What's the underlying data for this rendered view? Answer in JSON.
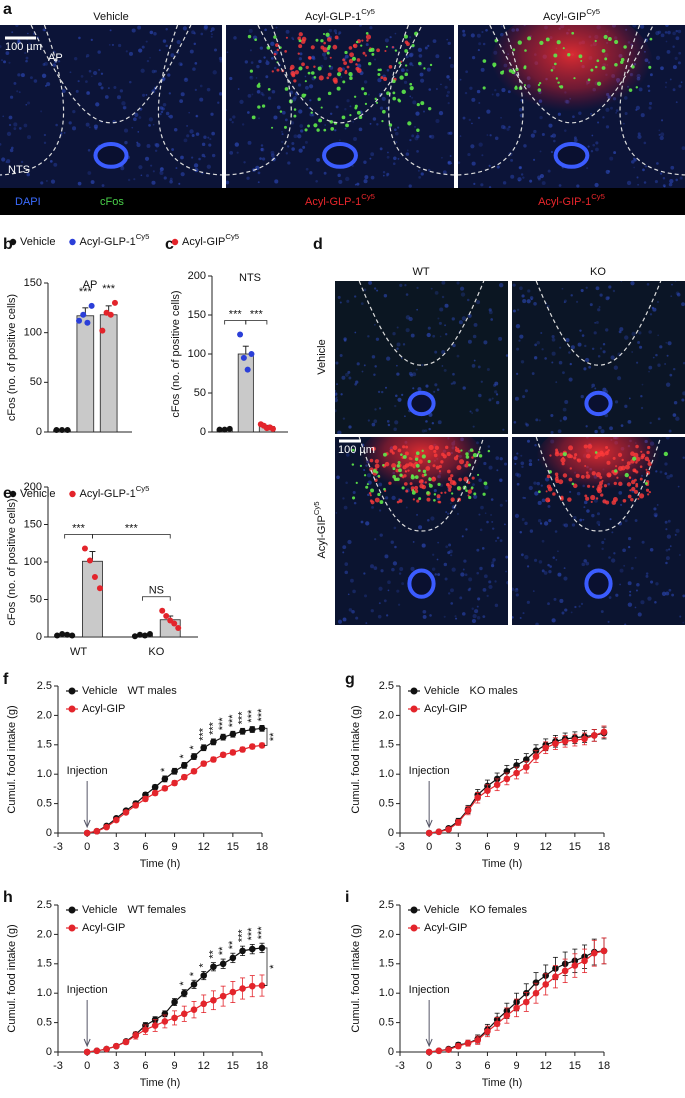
{
  "panel_a": {
    "letter": "a",
    "columns": [
      {
        "text": "Vehicle"
      },
      {
        "text": "Acyl-GLP-1",
        "sup": "Cy5"
      },
      {
        "text": "Acyl-GIP",
        "sup": "Cy5"
      }
    ],
    "scale_bar": "100 µm",
    "regions": [
      "AP",
      "NTS"
    ],
    "channels": [
      "DAPI",
      "cFos"
    ],
    "bottom_labels": [
      {
        "text": "Acyl-GLP-1",
        "sup": "Cy5"
      },
      {
        "text": "Acyl-GIP-1",
        "sup": "Cy5"
      }
    ]
  },
  "panel_d": {
    "letter": "d",
    "columns": [
      "WT",
      "KO"
    ],
    "rows": [
      {
        "text": "Vehicle"
      },
      {
        "text": "Acyl-GIP",
        "sup": "Cy5"
      }
    ],
    "scale_bar": "100 µm"
  },
  "chart_data": [
    {
      "type": "bar",
      "panel": "b",
      "title": "AP",
      "ylabel": "cFos (no. of positive cells)",
      "ylim": [
        0,
        150
      ],
      "yticks": [
        0,
        50,
        100,
        150
      ],
      "series": [
        {
          "name": "Vehicle",
          "color": "#111111",
          "values": [
            2
          ],
          "errors": [
            0.5
          ],
          "points": [
            [
              2,
              2,
              2
            ]
          ]
        },
        {
          "name": "Acyl-GLP-1",
          "name_sup": "Cy5",
          "color": "#2b3fd8",
          "values": [
            117
          ],
          "errors": [
            8
          ],
          "points": [
            [
              112,
              118,
              110,
              127
            ]
          ]
        },
        {
          "color": "#e3242b",
          "values": [
            118
          ],
          "errors": [
            9
          ],
          "points": [
            [
              102,
              120,
              118,
              130
            ]
          ]
        }
      ],
      "significance": [
        {
          "bars": [
            1
          ],
          "text": "***"
        },
        {
          "bars": [
            2
          ],
          "text": "***"
        }
      ]
    },
    {
      "type": "bar",
      "panel": "c",
      "title": "NTS",
      "ylabel": "cFos (no. of positive cells)",
      "ylim": [
        0,
        200
      ],
      "yticks": [
        0,
        50,
        100,
        150,
        200
      ],
      "series": [
        {
          "color": "#111111",
          "values": [
            3
          ],
          "errors": [
            0.5
          ],
          "points": [
            [
              3,
              3,
              4
            ]
          ]
        },
        {
          "color": "#2b3fd8",
          "values": [
            100
          ],
          "errors": [
            10
          ],
          "points": [
            [
              125,
              95,
              80,
              100
            ]
          ]
        },
        {
          "name": "Acyl-GIP",
          "name_sup": "Cy5",
          "color": "#e3242b",
          "values": [
            7
          ],
          "errors": [
            1.5
          ],
          "points": [
            [
              10,
              8,
              5,
              6,
              4
            ]
          ]
        }
      ],
      "significance": [
        {
          "bars": [
            0,
            1
          ],
          "text": "***"
        },
        {
          "bars": [
            1,
            2
          ],
          "text": "***"
        }
      ]
    },
    {
      "type": "bar",
      "panel": "e",
      "ylabel": "cFos (no. of positive cells)",
      "ylim": [
        0,
        200
      ],
      "yticks": [
        0,
        50,
        100,
        150,
        200
      ],
      "categories": [
        "WT",
        "KO"
      ],
      "series": [
        {
          "name": "Vehicle",
          "color": "#111111",
          "values": [
            3,
            2
          ],
          "errors": [
            0.5,
            0.6
          ],
          "points": [
            [
              2,
              4,
              3,
              2
            ],
            [
              1,
              3,
              2,
              4
            ]
          ]
        },
        {
          "name": "Acyl-GLP-1",
          "name_sup": "Cy5",
          "color": "#e3242b",
          "values": [
            101,
            23
          ],
          "errors": [
            13,
            5
          ],
          "points": [
            [
              118,
              102,
              80,
              65
            ],
            [
              35,
              28,
              22,
              18,
              12
            ]
          ]
        }
      ],
      "significance": [
        {
          "bars": [
            0,
            1
          ],
          "text": "***"
        },
        {
          "bars": [
            1,
            3
          ],
          "text": "***"
        },
        {
          "bars": [
            2,
            3
          ],
          "text": "NS"
        }
      ]
    },
    {
      "type": "line",
      "panel": "f",
      "subtitle": "WT males",
      "xlabel": "Time (h)",
      "ylabel": "Cumul. food intake (g)",
      "x": [
        0,
        1,
        2,
        3,
        4,
        5,
        6,
        7,
        8,
        9,
        10,
        11,
        12,
        13,
        14,
        15,
        16,
        17,
        18
      ],
      "xlim": [
        -3,
        18
      ],
      "xticks": [
        -3,
        0,
        3,
        6,
        9,
        12,
        15,
        18
      ],
      "ylim": [
        0,
        2.5
      ],
      "yticks": [
        0,
        0.5,
        {
          "value": 1,
          "label": "1.0"
        },
        1.5,
        {
          "value": 2,
          "label": "2.0"
        },
        2.5
      ],
      "series": [
        {
          "name": "Vehicle",
          "color": "#111111",
          "values": [
            0,
            0.03,
            0.12,
            0.25,
            0.38,
            0.5,
            0.65,
            0.78,
            0.92,
            1.05,
            1.15,
            1.3,
            1.45,
            1.55,
            1.63,
            1.68,
            1.73,
            1.76,
            1.78
          ],
          "errors": [
            0,
            0.01,
            0.02,
            0.03,
            0.03,
            0.04,
            0.04,
            0.04,
            0.05,
            0.05,
            0.05,
            0.05,
            0.05,
            0.05,
            0.05,
            0.05,
            0.05,
            0.05,
            0.05
          ]
        },
        {
          "name": "Acyl-GIP",
          "color": "#e3242b",
          "values": [
            0,
            0.03,
            0.1,
            0.22,
            0.35,
            0.47,
            0.58,
            0.68,
            0.76,
            0.85,
            0.95,
            1.05,
            1.18,
            1.25,
            1.33,
            1.37,
            1.42,
            1.47,
            1.49
          ],
          "errors": [
            0,
            0.01,
            0.02,
            0.03,
            0.03,
            0.04,
            0.04,
            0.04,
            0.04,
            0.04,
            0.04,
            0.04,
            0.04,
            0.04,
            0.04,
            0.04,
            0.04,
            0.04,
            0.04
          ]
        }
      ],
      "annotation": {
        "text": "Injection",
        "x": 0
      },
      "significance": [
        {
          "x": 8,
          "text": "*"
        },
        {
          "x": 10,
          "text": "*"
        },
        {
          "x": 11,
          "text": "*"
        },
        {
          "x": 12,
          "text": "***"
        },
        {
          "x": 13,
          "text": "***"
        },
        {
          "x": 14,
          "text": "***"
        },
        {
          "x": 15,
          "text": "***"
        },
        {
          "x": 16,
          "text": "***"
        },
        {
          "x": 17,
          "text": "***"
        },
        {
          "x": 18,
          "text": "***"
        }
      ],
      "bracket": "**"
    },
    {
      "type": "line",
      "panel": "g",
      "subtitle": "KO males",
      "xlabel": "Time (h)",
      "ylabel": "Cumul. food intake (g)",
      "x": [
        0,
        1,
        2,
        3,
        4,
        5,
        6,
        7,
        8,
        9,
        10,
        11,
        12,
        13,
        14,
        15,
        16,
        17,
        18
      ],
      "xlim": [
        -3,
        18
      ],
      "xticks": [
        -3,
        0,
        3,
        6,
        9,
        12,
        15,
        18
      ],
      "ylim": [
        0,
        2.5
      ],
      "yticks": [
        0,
        0.5,
        {
          "value": 1,
          "label": "1.0"
        },
        1.5,
        {
          "value": 2,
          "label": "2.0"
        },
        2.5
      ],
      "series": [
        {
          "name": "Vehicle",
          "color": "#111111",
          "values": [
            0,
            0.02,
            0.08,
            0.2,
            0.4,
            0.65,
            0.8,
            0.92,
            1.05,
            1.15,
            1.25,
            1.4,
            1.5,
            1.56,
            1.6,
            1.62,
            1.64,
            1.66,
            1.7
          ],
          "errors": [
            0,
            0.01,
            0.03,
            0.05,
            0.07,
            0.09,
            0.1,
            0.1,
            0.1,
            0.1,
            0.1,
            0.1,
            0.1,
            0.1,
            0.1,
            0.1,
            0.1,
            0.1,
            0.1
          ]
        },
        {
          "name": "Acyl-GIP",
          "color": "#e3242b",
          "values": [
            0,
            0.02,
            0.06,
            0.18,
            0.38,
            0.6,
            0.72,
            0.82,
            0.92,
            1.02,
            1.12,
            1.3,
            1.45,
            1.52,
            1.56,
            1.58,
            1.6,
            1.66,
            1.72
          ],
          "errors": [
            0,
            0.01,
            0.03,
            0.05,
            0.07,
            0.09,
            0.1,
            0.1,
            0.1,
            0.1,
            0.1,
            0.1,
            0.1,
            0.1,
            0.1,
            0.1,
            0.1,
            0.1,
            0.1
          ]
        }
      ],
      "annotation": {
        "text": "Injection",
        "x": 0
      }
    },
    {
      "type": "line",
      "panel": "h",
      "subtitle": "WT females",
      "xlabel": "Time (h)",
      "ylabel": "Cumul. food intake (g)",
      "x": [
        0,
        1,
        2,
        3,
        4,
        5,
        6,
        7,
        8,
        9,
        10,
        11,
        12,
        13,
        14,
        15,
        16,
        17,
        18
      ],
      "xlim": [
        -3,
        18
      ],
      "xticks": [
        -3,
        0,
        3,
        6,
        9,
        12,
        15,
        18
      ],
      "ylim": [
        0,
        2.5
      ],
      "yticks": [
        0,
        0.5,
        {
          "value": 1,
          "label": "1.0"
        },
        1.5,
        {
          "value": 2,
          "label": "2.0"
        },
        2.5
      ],
      "series": [
        {
          "name": "Vehicle",
          "color": "#111111",
          "values": [
            0,
            0.02,
            0.05,
            0.1,
            0.18,
            0.3,
            0.45,
            0.55,
            0.65,
            0.85,
            1,
            1.15,
            1.3,
            1.45,
            1.5,
            1.6,
            1.72,
            1.75,
            1.77
          ],
          "errors": [
            0,
            0.01,
            0.02,
            0.02,
            0.03,
            0.04,
            0.05,
            0.05,
            0.05,
            0.06,
            0.06,
            0.07,
            0.07,
            0.07,
            0.08,
            0.08,
            0.08,
            0.08,
            0.08
          ]
        },
        {
          "name": "Acyl-GIP",
          "color": "#e3242b",
          "values": [
            0,
            0.02,
            0.05,
            0.1,
            0.17,
            0.28,
            0.38,
            0.45,
            0.52,
            0.58,
            0.65,
            0.72,
            0.82,
            0.88,
            0.95,
            1.02,
            1.08,
            1.12,
            1.13
          ],
          "errors": [
            0,
            0.01,
            0.02,
            0.03,
            0.04,
            0.06,
            0.08,
            0.1,
            0.11,
            0.12,
            0.13,
            0.14,
            0.15,
            0.16,
            0.17,
            0.18,
            0.18,
            0.18,
            0.18
          ]
        }
      ],
      "annotation": {
        "text": "Injection",
        "x": 0
      },
      "significance": [
        {
          "x": 10,
          "text": "*"
        },
        {
          "x": 11,
          "text": "*"
        },
        {
          "x": 12,
          "text": "*"
        },
        {
          "x": 13,
          "text": "**"
        },
        {
          "x": 14,
          "text": "**"
        },
        {
          "x": 15,
          "text": "**"
        },
        {
          "x": 16,
          "text": "***"
        },
        {
          "x": 17,
          "text": "***"
        },
        {
          "x": 18,
          "text": "***"
        }
      ],
      "bracket": "*"
    },
    {
      "type": "line",
      "panel": "i",
      "subtitle": "KO females",
      "xlabel": "Time (h)",
      "ylabel": "Cumul. food intake (g)",
      "x": [
        0,
        1,
        2,
        3,
        4,
        5,
        6,
        7,
        8,
        9,
        10,
        11,
        12,
        13,
        14,
        15,
        16,
        17,
        18
      ],
      "xlim": [
        -3,
        18
      ],
      "xticks": [
        -3,
        0,
        3,
        6,
        9,
        12,
        15,
        18
      ],
      "ylim": [
        0,
        2.5
      ],
      "yticks": [
        0,
        0.5,
        {
          "value": 1,
          "label": "1.0"
        },
        1.5,
        {
          "value": 2,
          "label": "2.0"
        },
        2.5
      ],
      "series": [
        {
          "name": "Vehicle",
          "color": "#111111",
          "values": [
            0,
            0.02,
            0.05,
            0.12,
            0.15,
            0.22,
            0.38,
            0.55,
            0.7,
            0.85,
            1,
            1.18,
            1.3,
            1.42,
            1.5,
            1.55,
            1.62,
            1.7,
            1.72
          ],
          "errors": [
            0,
            0.01,
            0.02,
            0.04,
            0.05,
            0.07,
            0.09,
            0.11,
            0.13,
            0.15,
            0.16,
            0.17,
            0.18,
            0.19,
            0.2,
            0.2,
            0.2,
            0.22,
            0.22
          ]
        },
        {
          "name": "Acyl-GIP",
          "color": "#e3242b",
          "values": [
            0,
            0.02,
            0.04,
            0.1,
            0.15,
            0.2,
            0.35,
            0.48,
            0.62,
            0.75,
            0.85,
            1,
            1.15,
            1.28,
            1.38,
            1.47,
            1.55,
            1.68,
            1.72
          ],
          "errors": [
            0,
            0.01,
            0.02,
            0.04,
            0.05,
            0.07,
            0.09,
            0.11,
            0.13,
            0.15,
            0.16,
            0.17,
            0.18,
            0.19,
            0.2,
            0.2,
            0.2,
            0.22,
            0.22
          ]
        }
      ],
      "annotation": {
        "text": "Injection",
        "x": 0
      }
    }
  ]
}
